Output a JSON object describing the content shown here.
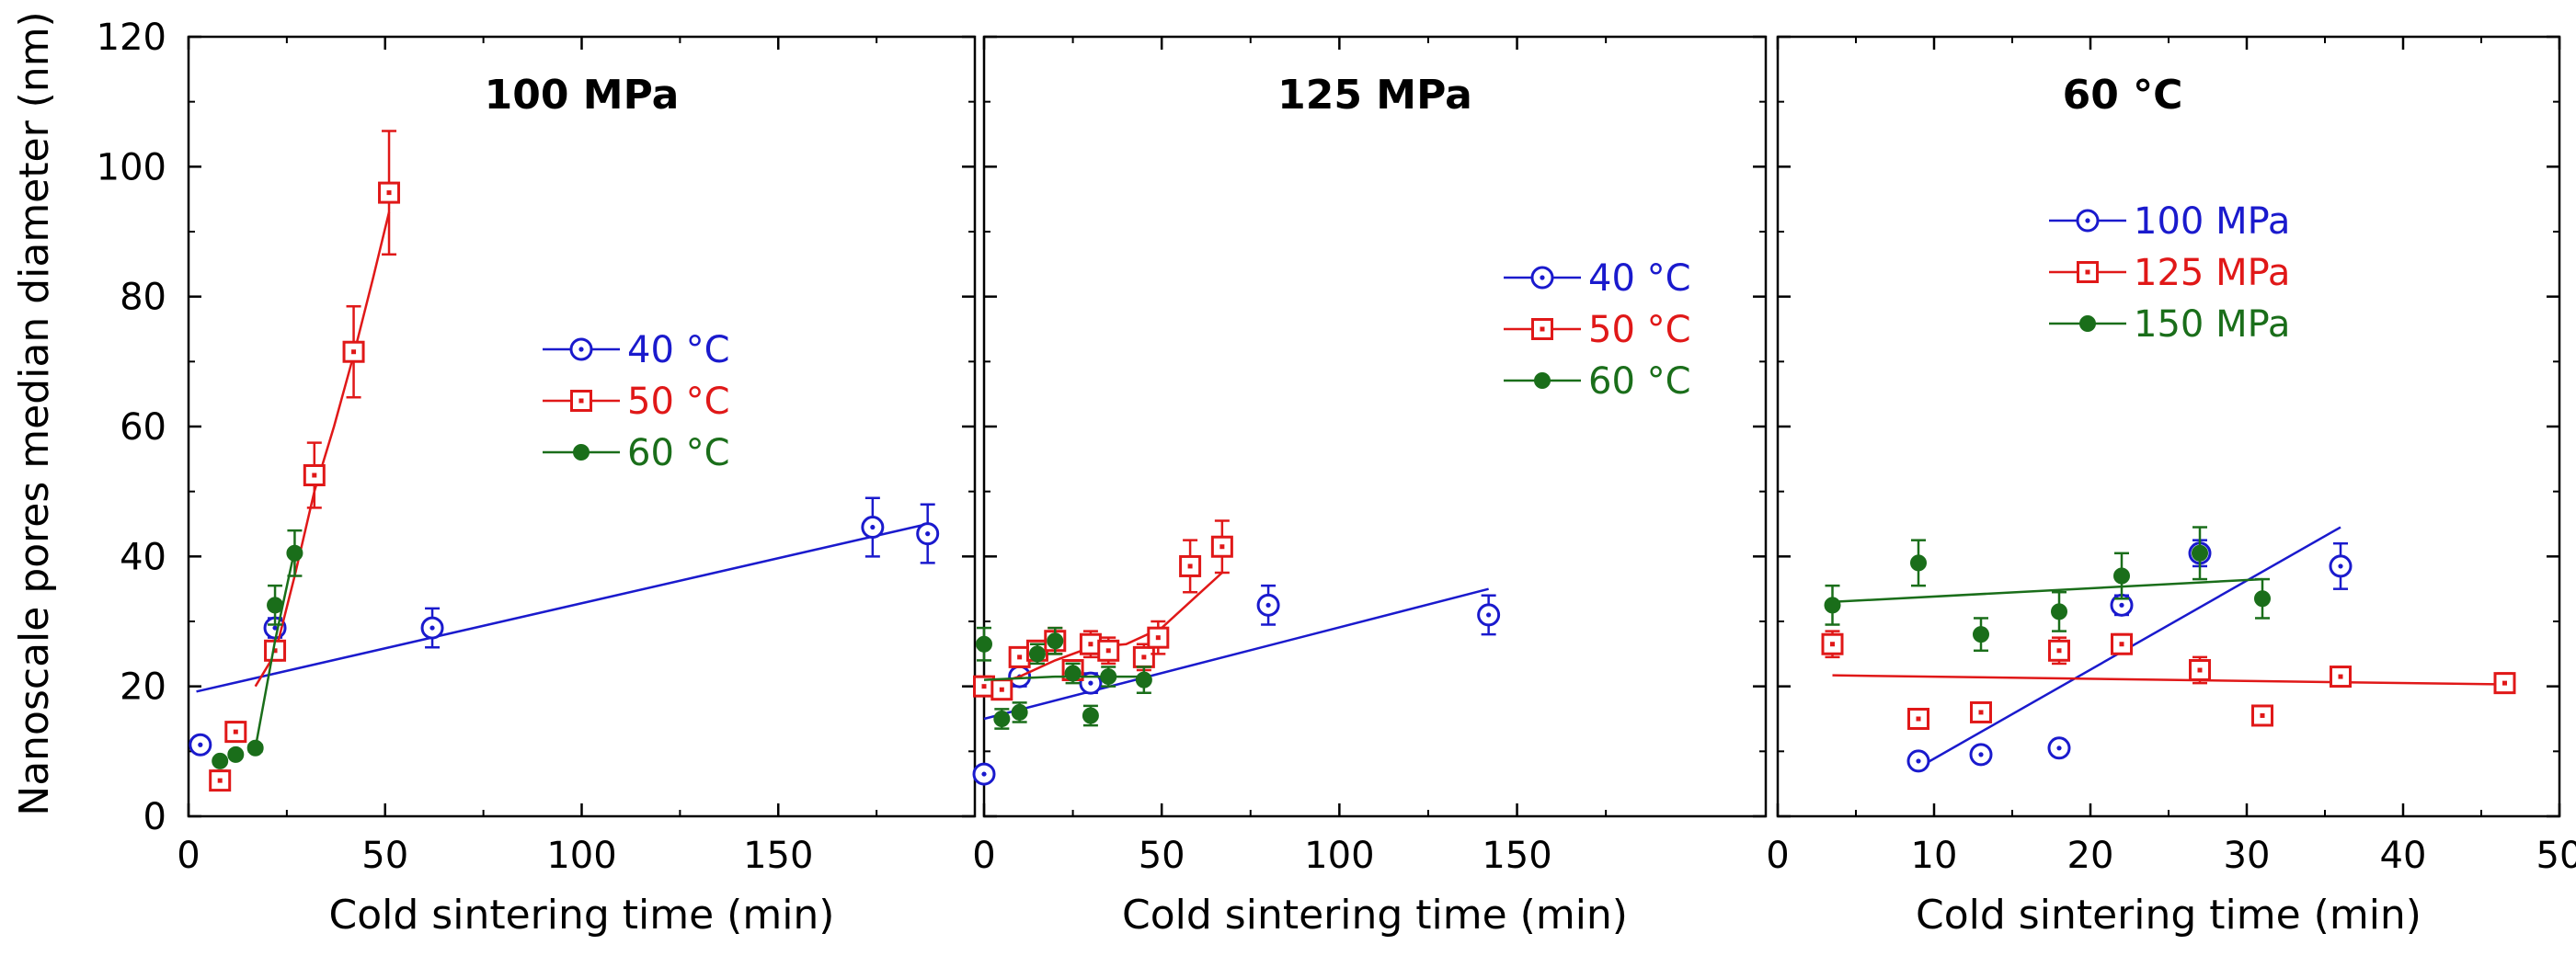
{
  "figure": {
    "ylabel": "Nanoscale pores median diameter (nm)",
    "ylim": [
      0,
      120
    ],
    "yticks": [
      "0",
      "20",
      "40",
      "60",
      "80",
      "100",
      "120"
    ]
  },
  "chart_data": [
    {
      "type": "scatter",
      "title": "100 MPa",
      "xlabel": "Cold sintering time (min)",
      "xlim": [
        0,
        200
      ],
      "ylim": [
        0,
        120
      ],
      "xticks": [
        "0",
        "50",
        "100",
        "150"
      ],
      "xtick_values": [
        0,
        50,
        100,
        150
      ],
      "legend_position": "center",
      "series": [
        {
          "name": "40 °C",
          "color": "#1a1acd",
          "marker": "circle-dot",
          "x": [
            3,
            22,
            62,
            174,
            188
          ],
          "y": [
            11,
            29,
            29,
            44.5,
            43.5
          ],
          "err": [
            0,
            1.5,
            3,
            4.5,
            4.5
          ],
          "fit": [
            [
              2,
              19.2
            ],
            [
              188,
              45
            ]
          ]
        },
        {
          "name": "50 °C",
          "color": "#e01818",
          "marker": "square-dot",
          "x": [
            8,
            12,
            22,
            32,
            42,
            51
          ],
          "y": [
            5.5,
            13,
            25.5,
            52.5,
            71.5,
            96
          ],
          "err": [
            1.5,
            1.5,
            1.5,
            5,
            7,
            9.5
          ],
          "fit": [
            [
              17,
              20
            ],
            [
              22,
              25
            ],
            [
              27,
              37
            ],
            [
              32,
              50
            ],
            [
              37,
              60
            ],
            [
              42,
              71
            ],
            [
              47,
              83
            ],
            [
              51,
              93
            ]
          ]
        },
        {
          "name": "60 °C",
          "color": "#1a6e1a",
          "marker": "filled-circle",
          "x": [
            8,
            12,
            17,
            22,
            27
          ],
          "y": [
            8.5,
            9.5,
            10.5,
            32.5,
            40.5
          ],
          "err": [
            0,
            0,
            0.5,
            3,
            3.5
          ],
          "fit": [
            [
              17,
              10.5
            ],
            [
              22,
              27
            ],
            [
              27,
              41
            ]
          ]
        }
      ]
    },
    {
      "type": "scatter",
      "title": "125 MPa",
      "xlabel": "Cold sintering time (min)",
      "xlim": [
        0,
        220
      ],
      "ylim": [
        0,
        120
      ],
      "xticks": [
        "0",
        "50",
        "100",
        "150"
      ],
      "xtick_values": [
        0,
        50,
        100,
        150
      ],
      "legend_position": "top-right",
      "series": [
        {
          "name": "40 °C",
          "color": "#1a1acd",
          "marker": "circle-dot",
          "x": [
            0,
            10,
            30,
            80,
            142
          ],
          "y": [
            6.5,
            21.5,
            20.5,
            32.5,
            31
          ],
          "err": [
            0,
            1.5,
            1.5,
            3,
            3
          ],
          "fit": [
            [
              0,
              15
            ],
            [
              142,
              35
            ]
          ]
        },
        {
          "name": "50 °C",
          "color": "#e01818",
          "marker": "square-dot",
          "x": [
            0,
            5,
            10,
            15,
            20,
            25,
            30,
            35,
            45,
            49,
            58,
            67
          ],
          "y": [
            20,
            19.5,
            24.5,
            25.5,
            27,
            22.5,
            26.5,
            25.5,
            24.5,
            27.5,
            38.5,
            41.5
          ],
          "err": [
            1.5,
            1.5,
            1.5,
            1.5,
            2,
            1.5,
            2,
            2,
            2,
            2.5,
            4,
            4
          ],
          "fit": [
            [
              0,
              20
            ],
            [
              10,
              21.5
            ],
            [
              20,
              24
            ],
            [
              30,
              26
            ],
            [
              40,
              26.5
            ],
            [
              50,
              29
            ],
            [
              60,
              34
            ],
            [
              67,
              37.5
            ]
          ]
        },
        {
          "name": "60 °C",
          "color": "#1a6e1a",
          "marker": "filled-circle",
          "x": [
            0,
            5,
            10,
            15,
            20,
            25,
            30,
            35,
            45
          ],
          "y": [
            26.5,
            15,
            16,
            25,
            27,
            22,
            15.5,
            21.5,
            21
          ],
          "err": [
            2.5,
            1.5,
            1.5,
            1.5,
            2,
            1.5,
            1.5,
            1.5,
            2
          ],
          "fit": [
            [
              0,
              21
            ],
            [
              20,
              21.5
            ],
            [
              45,
              21.5
            ]
          ]
        }
      ]
    },
    {
      "type": "scatter",
      "title": "60 °C",
      "xlabel": "Cold sintering time (min)",
      "xlim": [
        0,
        50
      ],
      "ylim": [
        0,
        120
      ],
      "xticks": [
        "0",
        "10",
        "20",
        "30",
        "40",
        "50"
      ],
      "xtick_values": [
        0,
        10,
        20,
        30,
        40,
        50
      ],
      "legend_position": "top-center",
      "series": [
        {
          "name": "100 MPa",
          "color": "#1a1acd",
          "marker": "circle-dot",
          "x": [
            9,
            13,
            18,
            22,
            27,
            36
          ],
          "y": [
            8.5,
            9.5,
            10.5,
            32.5,
            40.5,
            38.5
          ],
          "err": [
            0,
            0,
            0,
            1.5,
            2,
            3.5
          ],
          "fit": [
            [
              9,
              7.5
            ],
            [
              36,
              44.5
            ]
          ]
        },
        {
          "name": "125 MPa",
          "color": "#e01818",
          "marker": "square-dot",
          "x": [
            3.5,
            9,
            13,
            18,
            22,
            27,
            31,
            36,
            46.5
          ],
          "y": [
            26.5,
            15,
            16,
            25.5,
            26.5,
            22.5,
            15.5,
            21.5,
            20.5
          ],
          "err": [
            2,
            0,
            1,
            2,
            1.5,
            2,
            0,
            1.5,
            1.5
          ],
          "fit": [
            [
              3.5,
              21.7
            ],
            [
              46.5,
              20.3
            ]
          ]
        },
        {
          "name": "150 MPa",
          "color": "#1a6e1a",
          "marker": "filled-circle",
          "x": [
            3.5,
            9,
            13,
            18,
            22,
            27,
            31
          ],
          "y": [
            32.5,
            39,
            28,
            31.5,
            37,
            40.5,
            33.5
          ],
          "err": [
            3,
            3.5,
            2.5,
            3,
            3.5,
            4,
            3
          ],
          "fit": [
            [
              3.5,
              33
            ],
            [
              31,
              36.5
            ]
          ]
        }
      ]
    }
  ]
}
